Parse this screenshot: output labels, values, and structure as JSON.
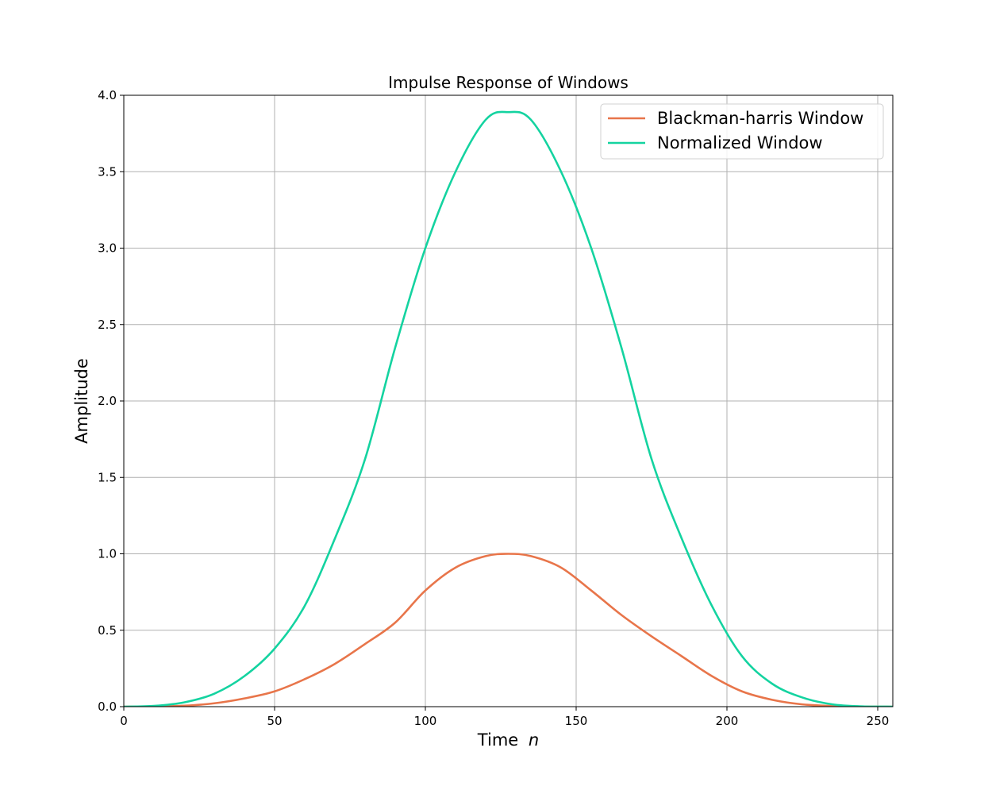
{
  "chart_data": {
    "type": "line",
    "title": "Impulse Response of Windows",
    "xlabel": "Time",
    "xlabel_var": "n",
    "ylabel": "Amplitude",
    "xlim": [
      0,
      255
    ],
    "ylim": [
      0,
      4.0
    ],
    "grid": true,
    "legend_position": "top-right",
    "x_ticks": [
      0,
      50,
      100,
      150,
      200,
      250
    ],
    "x_tick_labels": [
      "0",
      "50",
      "100",
      "150",
      "200",
      "250"
    ],
    "y_ticks": [
      0,
      0.5,
      1.0,
      1.5,
      2.0,
      2.5,
      3.0,
      3.5,
      4.0
    ],
    "y_tick_labels": [
      "0.0",
      "0.5",
      "1.0",
      "1.5",
      "2.0",
      "2.5",
      "3.0",
      "3.5",
      "4.0"
    ],
    "series": [
      {
        "name": "Blackman-harris Window",
        "color": "#e8754a",
        "x": [
          0,
          10,
          20,
          30,
          40,
          50,
          60,
          70,
          80,
          90,
          100,
          110,
          120,
          127.5,
          135,
          145,
          155,
          165,
          175,
          185,
          195,
          205,
          215,
          225,
          235,
          245,
          255
        ],
        "values": [
          0.0,
          0.001,
          0.006,
          0.022,
          0.054,
          0.1,
          0.18,
          0.28,
          0.41,
          0.55,
          0.76,
          0.91,
          0.985,
          1.0,
          0.985,
          0.91,
          0.76,
          0.6,
          0.46,
          0.33,
          0.2,
          0.1,
          0.045,
          0.015,
          0.004,
          0.0005,
          0.0
        ]
      },
      {
        "name": "Normalized Window",
        "color": "#14d3a0",
        "x": [
          0,
          10,
          20,
          30,
          40,
          50,
          60,
          70,
          80,
          90,
          100,
          110,
          120,
          127.5,
          135,
          145,
          155,
          165,
          175,
          185,
          195,
          205,
          215,
          225,
          235,
          245,
          255
        ],
        "values": [
          0.0,
          0.005,
          0.028,
          0.085,
          0.2,
          0.38,
          0.66,
          1.1,
          1.62,
          2.35,
          3.0,
          3.5,
          3.84,
          3.89,
          3.84,
          3.5,
          3.0,
          2.35,
          1.62,
          1.1,
          0.66,
          0.33,
          0.15,
          0.06,
          0.015,
          0.002,
          0.0
        ]
      }
    ]
  }
}
